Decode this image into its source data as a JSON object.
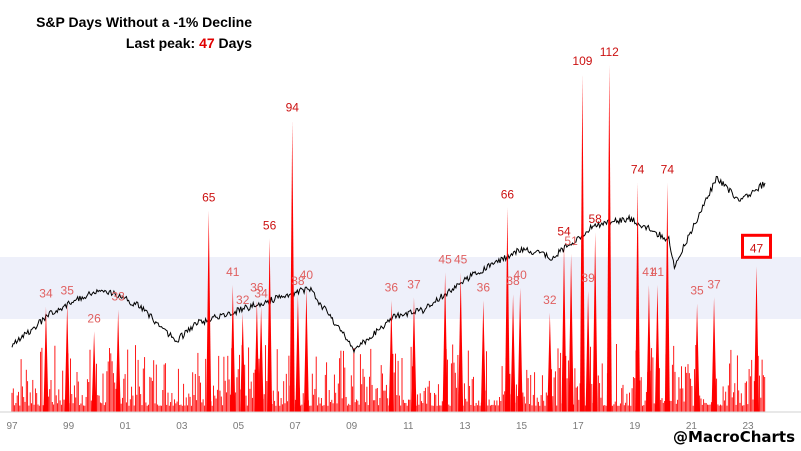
{
  "title": "S&P  Days Without a -1% Decline",
  "last_peak_prefix": "Last peak:",
  "last_peak_value": "47",
  "last_peak_suffix": "Days",
  "watermark": "@MacroCharts",
  "colors": {
    "bars": "#ff0000",
    "spx_line": "#000000",
    "band": "#eef0fa",
    "label_strong": "#cc1111",
    "label_soft": "#e06060",
    "highlight_box": "#ff0000"
  },
  "chart_data": {
    "type": "bar",
    "title": "S&P  Days Without a -1% Decline",
    "x_ticks": [
      "97",
      "99",
      "01",
      "03",
      "05",
      "07",
      "09",
      "11",
      "13",
      "15",
      "17",
      "19",
      "21",
      "23"
    ],
    "xlim": [
      1997.0,
      2023.6
    ],
    "ylim": [
      0,
      120
    ],
    "shaded_band": [
      30,
      50
    ],
    "peaks": [
      {
        "x": 1998.2,
        "value": 34,
        "label": "34",
        "style": "soft"
      },
      {
        "x": 1998.95,
        "value": 35,
        "label": "35",
        "style": "soft"
      },
      {
        "x": 1999.9,
        "value": 26,
        "label": "26",
        "style": "soft"
      },
      {
        "x": 2000.75,
        "value": 33,
        "label": "33",
        "style": "soft"
      },
      {
        "x": 2003.95,
        "value": 65,
        "label": "65",
        "style": "strong"
      },
      {
        "x": 2004.8,
        "value": 41,
        "label": "41",
        "style": "soft"
      },
      {
        "x": 2005.15,
        "value": 32,
        "label": "32",
        "style": "soft"
      },
      {
        "x": 2005.65,
        "value": 36,
        "label": "36",
        "style": "soft"
      },
      {
        "x": 2005.8,
        "value": 34,
        "label": "34",
        "style": "soft"
      },
      {
        "x": 2006.1,
        "value": 56,
        "label": "56",
        "style": "strong"
      },
      {
        "x": 2006.9,
        "value": 94,
        "label": "94",
        "style": "strong"
      },
      {
        "x": 2007.1,
        "value": 38,
        "label": "38",
        "style": "soft"
      },
      {
        "x": 2007.4,
        "value": 40,
        "label": "40",
        "style": "soft"
      },
      {
        "x": 2010.4,
        "value": 36,
        "label": "36",
        "style": "soft"
      },
      {
        "x": 2011.2,
        "value": 37,
        "label": "37",
        "style": "soft"
      },
      {
        "x": 2012.3,
        "value": 45,
        "label": "45",
        "style": "soft"
      },
      {
        "x": 2012.85,
        "value": 45,
        "label": "45",
        "style": "soft"
      },
      {
        "x": 2013.65,
        "value": 36,
        "label": "36",
        "style": "soft"
      },
      {
        "x": 2014.5,
        "value": 66,
        "label": "66",
        "style": "strong"
      },
      {
        "x": 2014.7,
        "value": 38,
        "label": "38",
        "style": "soft"
      },
      {
        "x": 2014.95,
        "value": 40,
        "label": "40",
        "style": "soft"
      },
      {
        "x": 2016.0,
        "value": 32,
        "label": "32",
        "style": "soft"
      },
      {
        "x": 2016.5,
        "value": 54,
        "label": "54",
        "style": "strong"
      },
      {
        "x": 2016.75,
        "value": 51,
        "label": "51",
        "style": "soft"
      },
      {
        "x": 2017.15,
        "value": 109,
        "label": "109",
        "style": "strong"
      },
      {
        "x": 2017.35,
        "value": 39,
        "label": "39",
        "style": "soft"
      },
      {
        "x": 2017.6,
        "value": 58,
        "label": "58",
        "style": "strong"
      },
      {
        "x": 2018.1,
        "value": 112,
        "label": "112",
        "style": "strong"
      },
      {
        "x": 2019.5,
        "value": 41,
        "label": "41",
        "style": "soft"
      },
      {
        "x": 2019.1,
        "value": 74,
        "label": "74",
        "style": "strong"
      },
      {
        "x": 2019.8,
        "value": 41,
        "label": "41",
        "style": "soft"
      },
      {
        "x": 2020.15,
        "value": 74,
        "label": "74",
        "style": "strong"
      },
      {
        "x": 2021.2,
        "value": 35,
        "label": "35",
        "style": "soft"
      },
      {
        "x": 2021.8,
        "value": 37,
        "label": "37",
        "style": "soft"
      },
      {
        "x": 2023.3,
        "value": 47,
        "label": "47",
        "style": "highlight"
      }
    ]
  }
}
